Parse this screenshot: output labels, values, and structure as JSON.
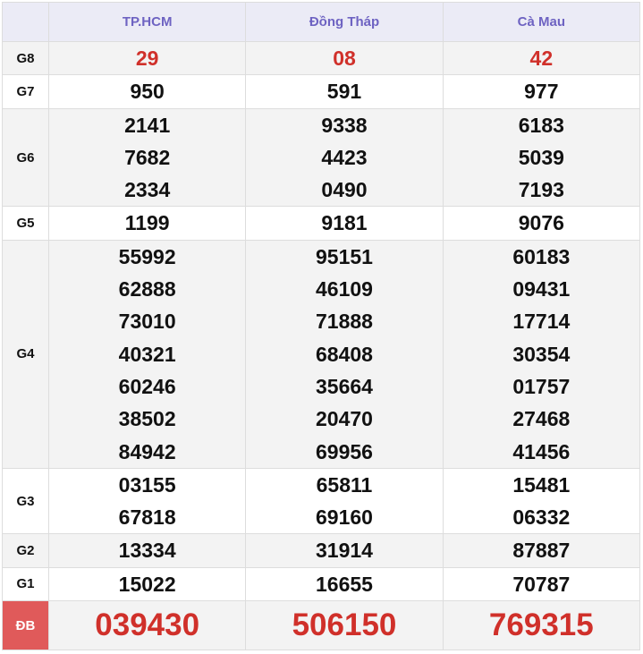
{
  "headers": [
    "",
    "TP.HCM",
    "Đồng Tháp",
    "Cà Mau"
  ],
  "rows": [
    {
      "label": "G8",
      "values": [
        [
          "29"
        ],
        [
          "08"
        ],
        [
          "42"
        ]
      ]
    },
    {
      "label": "G7",
      "values": [
        [
          "950"
        ],
        [
          "591"
        ],
        [
          "977"
        ]
      ]
    },
    {
      "label": "G6",
      "values": [
        [
          "2141",
          "7682",
          "2334"
        ],
        [
          "9338",
          "4423",
          "0490"
        ],
        [
          "6183",
          "5039",
          "7193"
        ]
      ]
    },
    {
      "label": "G5",
      "values": [
        [
          "1199"
        ],
        [
          "9181"
        ],
        [
          "9076"
        ]
      ]
    },
    {
      "label": "G4",
      "values": [
        [
          "55992",
          "62888",
          "73010",
          "40321",
          "60246",
          "38502",
          "84942"
        ],
        [
          "95151",
          "46109",
          "71888",
          "68408",
          "35664",
          "20470",
          "69956"
        ],
        [
          "60183",
          "09431",
          "17714",
          "30354",
          "01757",
          "27468",
          "41456"
        ]
      ]
    },
    {
      "label": "G3",
      "values": [
        [
          "03155",
          "67818"
        ],
        [
          "65811",
          "69160"
        ],
        [
          "15481",
          "06332"
        ]
      ]
    },
    {
      "label": "G2",
      "values": [
        [
          "13334"
        ],
        [
          "31914"
        ],
        [
          "87887"
        ]
      ]
    },
    {
      "label": "G1",
      "values": [
        [
          "15022"
        ],
        [
          "16655"
        ],
        [
          "70787"
        ]
      ]
    },
    {
      "label": "ĐB",
      "values": [
        [
          "039430"
        ],
        [
          "506150"
        ],
        [
          "769315"
        ]
      ]
    }
  ],
  "colors": {
    "accent_red": "#d0302a",
    "header_text": "#6e63c2",
    "special_label_bg": "#e05a5a"
  }
}
